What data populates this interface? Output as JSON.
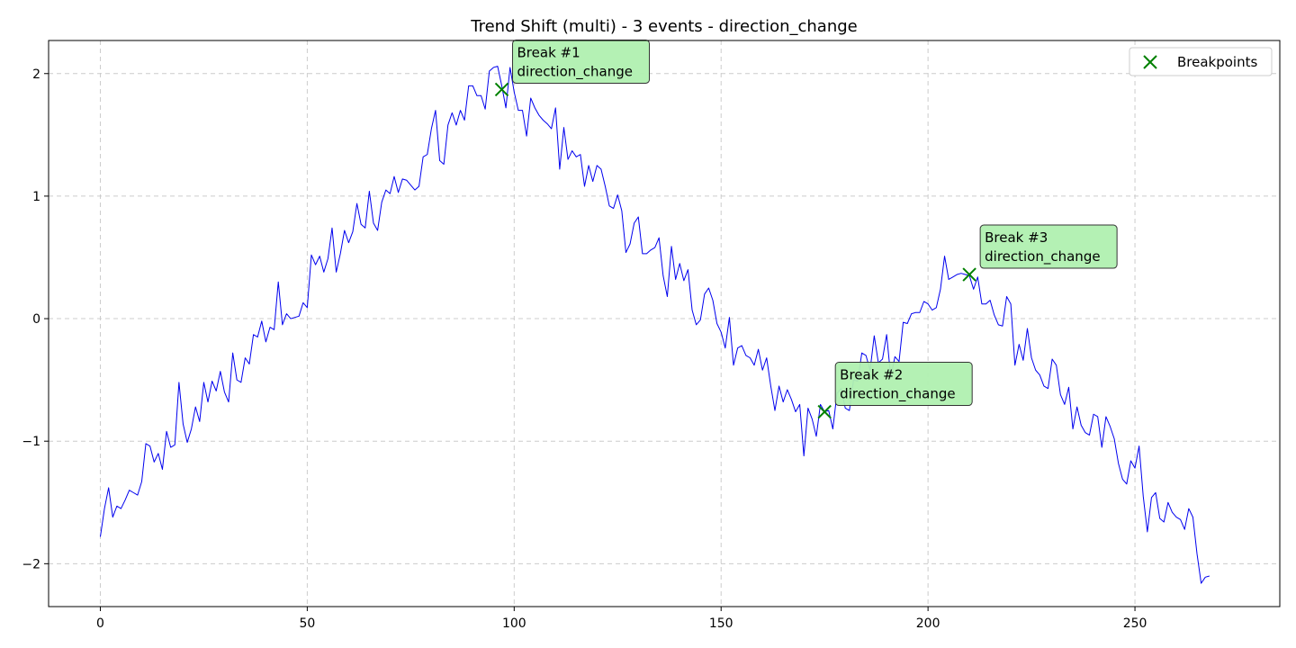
{
  "chart_data": {
    "type": "line",
    "title": "Trend Shift (multi) - 3 events - direction_change",
    "xlabel": "",
    "ylabel": "",
    "xlim": [
      -12.5,
      285
    ],
    "ylim": [
      -2.35,
      2.27
    ],
    "xticks": [
      0,
      50,
      100,
      150,
      200,
      250
    ],
    "yticks": [
      -2,
      -1,
      0,
      1,
      2
    ],
    "xtick_labels": [
      "0",
      "50",
      "100",
      "150",
      "200",
      "250"
    ],
    "ytick_labels": [
      "−2",
      "−1",
      "0",
      "1",
      "2"
    ],
    "grid": true,
    "legend": {
      "placement": "top-right",
      "entries": [
        "Breakpoints"
      ]
    },
    "colors": {
      "series": "#0000ee",
      "breakpoint": "#008000",
      "annotation_fill": "#b0f0b0",
      "grid": "#cccccc"
    },
    "series": [
      {
        "color": "#0000ee",
        "x_start": 0,
        "x_step": 1,
        "values": [
          -1.78,
          -1.55,
          -1.38,
          -1.62,
          -1.53,
          -1.55,
          -1.48,
          -1.4,
          -1.42,
          -1.44,
          -1.33,
          -1.02,
          -1.04,
          -1.17,
          -1.1,
          -1.23,
          -0.92,
          -1.05,
          -1.03,
          -0.52,
          -0.86,
          -1.01,
          -0.9,
          -0.72,
          -0.84,
          -0.52,
          -0.68,
          -0.51,
          -0.59,
          -0.43,
          -0.6,
          -0.68,
          -0.28,
          -0.5,
          -0.52,
          -0.32,
          -0.37,
          -0.13,
          -0.15,
          -0.02,
          -0.19,
          -0.07,
          -0.09,
          0.3,
          -0.05,
          0.04,
          0.0,
          0.01,
          0.02,
          0.13,
          0.09,
          0.52,
          0.44,
          0.51,
          0.38,
          0.49,
          0.74,
          0.38,
          0.53,
          0.72,
          0.62,
          0.71,
          0.94,
          0.77,
          0.74,
          1.04,
          0.78,
          0.72,
          0.95,
          1.05,
          1.02,
          1.16,
          1.03,
          1.14,
          1.13,
          1.09,
          1.05,
          1.08,
          1.32,
          1.34,
          1.55,
          1.7,
          1.29,
          1.26,
          1.58,
          1.68,
          1.58,
          1.7,
          1.62,
          1.9,
          1.9,
          1.82,
          1.82,
          1.71,
          2.02,
          2.05,
          2.06,
          1.9,
          1.72,
          2.05,
          1.85,
          1.7,
          1.7,
          1.49,
          1.8,
          1.72,
          1.66,
          1.62,
          1.59,
          1.55,
          1.72,
          1.22,
          1.56,
          1.3,
          1.37,
          1.32,
          1.34,
          1.08,
          1.25,
          1.12,
          1.25,
          1.22,
          1.08,
          0.92,
          0.9,
          1.01,
          0.88,
          0.54,
          0.61,
          0.78,
          0.83,
          0.53,
          0.53,
          0.56,
          0.58,
          0.66,
          0.35,
          0.18,
          0.59,
          0.32,
          0.45,
          0.31,
          0.4,
          0.07,
          -0.05,
          -0.01,
          0.2,
          0.25,
          0.15,
          -0.04,
          -0.11,
          -0.24,
          0.01,
          -0.38,
          -0.24,
          -0.22,
          -0.3,
          -0.32,
          -0.38,
          -0.25,
          -0.42,
          -0.32,
          -0.55,
          -0.75,
          -0.55,
          -0.68,
          -0.58,
          -0.66,
          -0.76,
          -0.7,
          -1.12,
          -0.73,
          -0.82,
          -0.96,
          -0.7,
          -0.76,
          -0.75,
          -0.9,
          -0.61,
          -0.57,
          -0.73,
          -0.75,
          -0.5,
          -0.51,
          -0.28,
          -0.3,
          -0.42,
          -0.14,
          -0.36,
          -0.33,
          -0.13,
          -0.48,
          -0.31,
          -0.35,
          -0.03,
          -0.04,
          0.04,
          0.05,
          0.05,
          0.14,
          0.12,
          0.07,
          0.09,
          0.24,
          0.51,
          0.32,
          0.34,
          0.36,
          0.37,
          0.36,
          0.35,
          0.24,
          0.34,
          0.12,
          0.12,
          0.15,
          0.03,
          -0.05,
          -0.06,
          0.18,
          0.12,
          -0.38,
          -0.21,
          -0.34,
          -0.08,
          -0.32,
          -0.42,
          -0.46,
          -0.55,
          -0.57,
          -0.33,
          -0.38,
          -0.62,
          -0.7,
          -0.56,
          -0.9,
          -0.72,
          -0.87,
          -0.93,
          -0.95,
          -0.78,
          -0.8,
          -1.05,
          -0.8,
          -0.88,
          -0.98,
          -1.18,
          -1.31,
          -1.35,
          -1.16,
          -1.22,
          -1.04,
          -1.45,
          -1.74,
          -1.46,
          -1.42,
          -1.63,
          -1.66,
          -1.5,
          -1.58,
          -1.62,
          -1.64,
          -1.72,
          -1.55,
          -1.62,
          -1.92,
          -2.16,
          -2.11,
          -2.1
        ]
      }
    ],
    "breakpoints": [
      {
        "x": 97,
        "y": 1.87,
        "label_line1": "Break #1",
        "label_line2": "direction_change"
      },
      {
        "x": 175,
        "y": -0.76,
        "label_line1": "Break #2",
        "label_line2": "direction_change"
      },
      {
        "x": 210,
        "y": 0.36,
        "label_line1": "Break #3",
        "label_line2": "direction_change"
      }
    ]
  }
}
